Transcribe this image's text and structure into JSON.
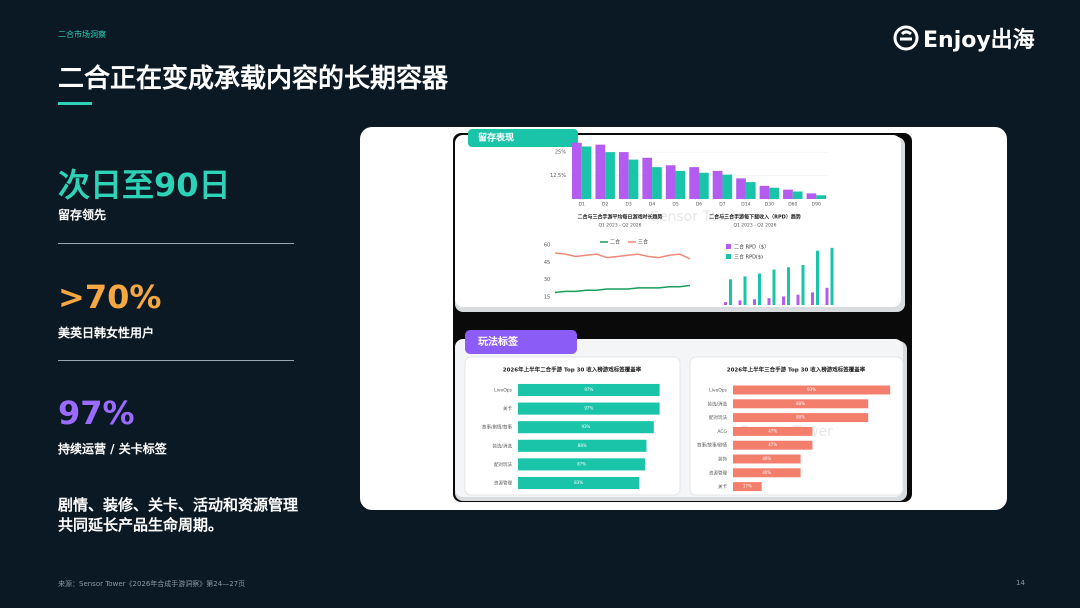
{
  "header": {
    "section": "二合市场洞察",
    "title": "二合正在变成承载内容的长期容器",
    "logo": "Enjoy出海"
  },
  "stats": [
    {
      "value": "次日至90日",
      "label": "留存领先",
      "color": "#2ed3b7"
    },
    {
      "value": ">70%",
      "label": "美英日韩女性用户",
      "color": "#f5a742"
    },
    {
      "value": "97%",
      "label": "持续运营 / 关卡标签",
      "color": "#9b6bff"
    }
  ],
  "summary": [
    "剧情、装修、关卡、活动和资源管理",
    "共同延长产品生命周期。"
  ],
  "footer": {
    "source": "来源：Sensor Tower《2026年合成手游洞察》第24—27页",
    "page": "14"
  },
  "panel": {
    "tabs": [
      "留存表现",
      "玩法标签"
    ],
    "watermark": "Sensor Tower",
    "retention": {
      "categories": [
        "D1",
        "D2",
        "D3",
        "D4",
        "D5",
        "D6",
        "D7",
        "D14",
        "D30",
        "D60",
        "D90"
      ],
      "series": [
        {
          "color": "#b45cf0",
          "values": [
            30,
            29,
            25,
            22,
            18,
            17,
            15,
            11,
            7,
            5,
            3
          ]
        },
        {
          "color": "#19c4a8",
          "values": [
            28,
            25,
            21,
            17,
            15,
            14,
            13,
            9,
            6,
            4,
            2
          ]
        }
      ],
      "ylim": [
        0,
        32
      ],
      "yticks": [
        {
          "value": 12.5,
          "label": "12.5%"
        },
        {
          "value": 25,
          "label": "25%"
        }
      ]
    },
    "line_chart": {
      "title": "二合与三合手游平均每日游戏时长趋势",
      "subtitle": "Q1 2023 - Q2 2026",
      "series": [
        {
          "name": "二合",
          "color": "#1a9c5b",
          "values": [
            19,
            20,
            20,
            21,
            21,
            22,
            22,
            22,
            23,
            23,
            23,
            24,
            24,
            25
          ]
        },
        {
          "name": "三合",
          "color": "#f08a78",
          "values": [
            53,
            52,
            50,
            51,
            52,
            49,
            50,
            51,
            52,
            50,
            49,
            51,
            52,
            48
          ]
        }
      ],
      "ylim": [
        10,
        65
      ],
      "yticks": [
        15,
        30,
        45,
        60
      ]
    },
    "rpd_chart": {
      "title": "二合与三合手游每下载收入（RPD）趋势",
      "subtitle": "Q1 2023 - Q2 2026",
      "series": [
        {
          "name": "二合 RPD（$）",
          "color": "#b45cf0",
          "values": [
            0.05,
            0.08,
            0.1,
            0.12,
            0.15,
            0.18,
            0.22,
            0.3
          ]
        },
        {
          "name": "三合 RPD($)",
          "color": "#19c4a8",
          "values": [
            0.45,
            0.5,
            0.55,
            0.62,
            0.66,
            0.7,
            0.95,
            1
          ]
        }
      ],
      "ylim": [
        0,
        1.05
      ]
    },
    "tags_two": {
      "title": "2026年上半年二合手游 Top 30 收入榜游戏标签覆盖率",
      "color": "#19c4a8",
      "categories": [
        "LiveOps",
        "关卡",
        "故事/剧情/叙事",
        "装选/消选",
        "配对玩法",
        "资源管理"
      ],
      "values": [
        97,
        97,
        93,
        88,
        87,
        83
      ],
      "value_labels": [
        "97%",
        "97%",
        "93%",
        "88%",
        "87%",
        "83%"
      ],
      "xlim": [
        0,
        100
      ]
    },
    "tags_three": {
      "title": "2026年上半年三合手游 Top 30 收入榜游戏标签覆盖率",
      "color": "#f47e6c",
      "categories": [
        "LiveOps",
        "装选/消选",
        "配对玩法",
        "ACG",
        "叙事/故事/剧情",
        "装饰",
        "资源管理",
        "关卡"
      ],
      "values": [
        93,
        80,
        80,
        47,
        47,
        40,
        40,
        17
      ],
      "value_labels": [
        "93%",
        "80%",
        "80%",
        "47%",
        "47%",
        "40%",
        "40%",
        "17%"
      ],
      "xlim": [
        0,
        100
      ]
    }
  }
}
